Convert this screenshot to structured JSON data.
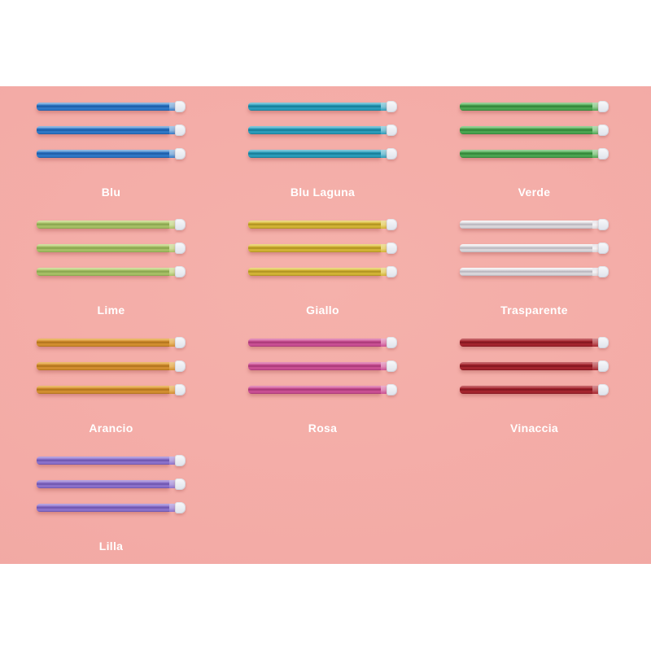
{
  "page": {
    "background": "#ffffff"
  },
  "panel": {
    "background": "#f3aba6",
    "label_color": "#ffffff"
  },
  "cap": {
    "top": "#f8f9fb",
    "bottom": "#dfe3eb"
  },
  "products": {
    "straws_per_item": 3,
    "items": [
      {
        "label": "Blu",
        "colors": {
          "light": "#8cb6e0",
          "base": "#2f78c6",
          "dark": "#1a57a0",
          "collar": "#aac9e8"
        }
      },
      {
        "label": "Blu Laguna",
        "colors": {
          "light": "#7cc5d8",
          "base": "#2b9cba",
          "dark": "#14758f",
          "collar": "#a5d6e2"
        }
      },
      {
        "label": "Verde",
        "colors": {
          "light": "#93cf94",
          "base": "#4ba551",
          "dark": "#2e7d34",
          "collar": "#b6dcb4"
        }
      },
      {
        "label": "Lime",
        "colors": {
          "light": "#cfdf9e",
          "base": "#a6bf65",
          "dark": "#82a04a",
          "collar": "#d9e4b4"
        }
      },
      {
        "label": "Giallo",
        "colors": {
          "light": "#ead87e",
          "base": "#d2b335",
          "dark": "#a68a1e",
          "collar": "#ecdfa0"
        }
      },
      {
        "label": "Trasparente",
        "colors": {
          "light": "#f4f3f5",
          "base": "#d9d6da",
          "dark": "#b3b0b8",
          "collar": "#e9e7ec"
        }
      },
      {
        "label": "Arancio",
        "colors": {
          "light": "#eab968",
          "base": "#d28e2f",
          "dark": "#a96e1a",
          "collar": "#ecc98e"
        }
      },
      {
        "label": "Rosa",
        "colors": {
          "light": "#e18cba",
          "base": "#c94f93",
          "dark": "#a23472",
          "collar": "#eab1ce"
        }
      },
      {
        "label": "Vinaccia",
        "colors": {
          "light": "#c25f64",
          "base": "#a4252e",
          "dark": "#7c131c",
          "collar": "#d49094"
        }
      },
      {
        "label": "Lilla",
        "colors": {
          "light": "#b3a1df",
          "base": "#8b71cb",
          "dark": "#6750a8",
          "collar": "#c7bae8"
        }
      }
    ]
  }
}
